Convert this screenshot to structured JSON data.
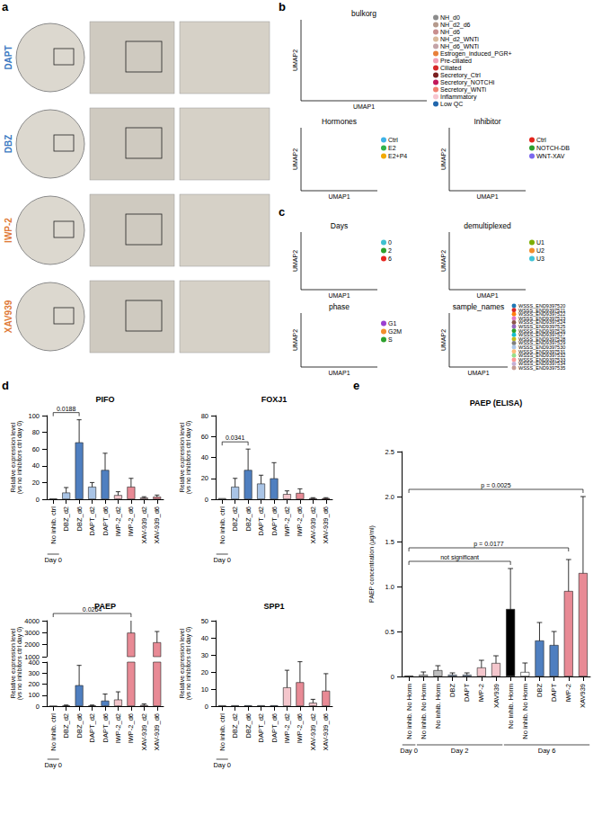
{
  "panel_labels": [
    "a",
    "b",
    "c",
    "d",
    "e"
  ],
  "panel_a": {
    "rows": [
      {
        "text": "DAPT",
        "color": "#3b78c2"
      },
      {
        "text": "DBZ",
        "color": "#3b78c2"
      },
      {
        "text": "IWP-2",
        "color": "#e07b39"
      },
      {
        "text": "XAV939",
        "color": "#e07b39"
      }
    ]
  },
  "panel_b": {
    "plots": [
      {
        "title": "bulkorg",
        "xlabel": "UMAP1",
        "ylabel": "UMAP2",
        "legend": [
          {
            "name": "NH_d0",
            "color": "#8c8c8c"
          },
          {
            "name": "NH_d2_d6",
            "color": "#b59a8c"
          },
          {
            "name": "NH_d6",
            "color": "#c98f8f"
          },
          {
            "name": "NH_d2_WNTi",
            "color": "#d9b99b"
          },
          {
            "name": "NH_d6_WNTi",
            "color": "#c4a4a8"
          },
          {
            "name": "Estrogen_induced_PGR+",
            "color": "#e8803a"
          },
          {
            "name": "Pre-ciliated",
            "color": "#f2a0b5"
          },
          {
            "name": "Ciliated",
            "color": "#d62728"
          },
          {
            "name": "Secretory_Ctrl",
            "color": "#7a1f1f"
          },
          {
            "name": "Secretory_NOTCHi",
            "color": "#c2185b"
          },
          {
            "name": "Secretory_WNTi",
            "color": "#f08070"
          },
          {
            "name": "Inflammatory",
            "color": "#f7c6d0"
          },
          {
            "name": "Low QC",
            "color": "#2166ac"
          }
        ]
      },
      {
        "title": "Hormones",
        "xlabel": "UMAP1",
        "ylabel": "UMAP2",
        "legend": [
          {
            "name": "Ctrl",
            "color": "#3fb2e6"
          },
          {
            "name": "E2",
            "color": "#2fb34a"
          },
          {
            "name": "E2+P4",
            "color": "#f2a900"
          }
        ]
      },
      {
        "title": "Inhibitor",
        "xlabel": "UMAP1",
        "ylabel": "UMAP2",
        "legend": [
          {
            "name": "Ctrl",
            "color": "#e3241b"
          },
          {
            "name": "NOTCH-DB",
            "color": "#2ca02c"
          },
          {
            "name": "WNT-XAV",
            "color": "#7b68ee"
          }
        ]
      }
    ]
  },
  "panel_c": {
    "plots": [
      {
        "title": "Days",
        "xlabel": "UMAP1",
        "ylabel": "UMAP2",
        "legend": [
          {
            "name": "0",
            "color": "#3fc1d0"
          },
          {
            "name": "2",
            "color": "#2ca02c"
          },
          {
            "name": "6",
            "color": "#e8251f"
          }
        ]
      },
      {
        "title": "demultiplexed",
        "xlabel": "UMAP1",
        "ylabel": "UMAP2",
        "legend": [
          {
            "name": "U1",
            "color": "#7cae00"
          },
          {
            "name": "U2",
            "color": "#f28e2b"
          },
          {
            "name": "U3",
            "color": "#40c4d8"
          }
        ]
      },
      {
        "title": "phase",
        "xlabel": "UMAP1",
        "ylabel": "UMAP2",
        "legend": [
          {
            "name": "G1",
            "color": "#9b3fd1"
          },
          {
            "name": "G2M",
            "color": "#f28e2b"
          },
          {
            "name": "S",
            "color": "#2ca02c"
          }
        ]
      },
      {
        "title": "sample_names",
        "xlabel": "UMAP1",
        "ylabel": "UMAP2",
        "legend": [
          {
            "name": "WSSS_END9397520",
            "color": "#1f77b4"
          },
          {
            "name": "WSSS_END9397521",
            "color": "#d62728"
          },
          {
            "name": "WSSS_END9397522",
            "color": "#ff7f0e"
          },
          {
            "name": "WSSS_END9397523",
            "color": "#e377c2"
          },
          {
            "name": "WSSS_END9397524",
            "color": "#8c564b"
          },
          {
            "name": "WSSS_END9397525",
            "color": "#9467bd"
          },
          {
            "name": "WSSS_END9397526",
            "color": "#2ca02c"
          },
          {
            "name": "WSSS_END9397527",
            "color": "#17becf"
          },
          {
            "name": "WSSS_END9397528",
            "color": "#bcbd22"
          },
          {
            "name": "WSSS_END9397529",
            "color": "#7f7f7f"
          },
          {
            "name": "WSSS_END9397530",
            "color": "#aec7e8"
          },
          {
            "name": "WSSS_END9397531",
            "color": "#ffbb78"
          },
          {
            "name": "WSSS_END9397532",
            "color": "#98df8a"
          },
          {
            "name": "WSSS_END9397533",
            "color": "#ff9896"
          },
          {
            "name": "WSSS_END9397534",
            "color": "#c5b0d5"
          },
          {
            "name": "WSSS_END9397535",
            "color": "#c49c94"
          }
        ]
      }
    ]
  },
  "chart_data": [
    {
      "type": "bar",
      "title": "PIFO",
      "ylabel": "Relative expression level\n(vs no inhibitors ctrl day 0)",
      "categories": [
        "No inhib. ctrl",
        "DBZ_d2",
        "DBZ_d6",
        "DAPT_d2",
        "DAPT_d6",
        "IWP-2_d2",
        "IWP-2_d6",
        "XAV-939_d2",
        "XAV-939_d6"
      ],
      "values": [
        1,
        8,
        68,
        15,
        35,
        5,
        15,
        2,
        3
      ],
      "errors": [
        0,
        6,
        27,
        5,
        20,
        4,
        10,
        1,
        2
      ],
      "colors": [
        "#ffffff",
        "#a9c4e6",
        "#4f7fc0",
        "#a9c4e6",
        "#4f7fc0",
        "#f4c6cc",
        "#e88a95",
        "#f4c6cc",
        "#e88a95"
      ],
      "ylim": [
        0,
        100
      ],
      "yticks": [
        0,
        20,
        40,
        60,
        80,
        100
      ],
      "annotations": [
        {
          "text": "0.0188",
          "from": 0,
          "to": 2
        }
      ],
      "x_groups": [
        {
          "text": "Day 0",
          "from": 0,
          "to": 0
        }
      ]
    },
    {
      "type": "bar",
      "title": "FOXJ1",
      "ylabel": "Relative expression level\n(vs no inhibitors ctrl day 0)",
      "categories": [
        "No inhib. ctrl",
        "DBZ_d2",
        "DBZ_d6",
        "DAPT_d2",
        "DAPT_d6",
        "IWP-2_d2",
        "IWP-2_d6",
        "XAV-939_d2",
        "XAV-939_d6"
      ],
      "values": [
        1,
        12,
        28,
        15,
        20,
        5,
        6,
        1,
        1
      ],
      "errors": [
        0,
        8,
        20,
        8,
        15,
        3,
        4,
        0.5,
        0.5
      ],
      "colors": [
        "#ffffff",
        "#a9c4e6",
        "#4f7fc0",
        "#a9c4e6",
        "#4f7fc0",
        "#f4c6cc",
        "#e88a95",
        "#f4c6cc",
        "#e88a95"
      ],
      "ylim": [
        0,
        80
      ],
      "yticks": [
        0,
        20,
        40,
        60,
        80
      ],
      "annotations": [
        {
          "text": "0.0341",
          "from": 0,
          "to": 2
        }
      ],
      "x_groups": [
        {
          "text": "Day 0",
          "from": 0,
          "to": 0
        }
      ]
    },
    {
      "type": "bar",
      "title": "PAEP",
      "ylabel": "Relative expression level\n(vs no inhibitors ctrl day 0)",
      "categories": [
        "No inhib. ctrl",
        "DBZ_d2",
        "DBZ_d6",
        "DAPT_d2",
        "DAPT_d6",
        "IWP-2_d2",
        "IWP-2_d6",
        "XAV-939_d2",
        "XAV-939_d6"
      ],
      "values": [
        1,
        5,
        190,
        5,
        50,
        60,
        3000,
        10,
        2200
      ],
      "errors": [
        0,
        5,
        180,
        5,
        60,
        70,
        1200,
        10,
        900
      ],
      "colors": [
        "#ffffff",
        "#a9c4e6",
        "#4f7fc0",
        "#a9c4e6",
        "#4f7fc0",
        "#f4c6cc",
        "#e88a95",
        "#f4c6cc",
        "#e88a95"
      ],
      "ylim": [
        0,
        4000
      ],
      "y_break": [
        400,
        1000
      ],
      "yticks": [
        0,
        100,
        200,
        300,
        400,
        1000,
        2000,
        3000,
        4000
      ],
      "annotations": [
        {
          "text": "0.0264",
          "from": 0,
          "to": 6
        }
      ],
      "x_groups": [
        {
          "text": "Day 0",
          "from": 0,
          "to": 0
        }
      ]
    },
    {
      "type": "bar",
      "title": "SPP1",
      "ylabel": "Relative expression level\n(vs no inhibitors ctrl day 0)",
      "categories": [
        "No inhib. ctrl",
        "DBZ_d2",
        "DBZ_d6",
        "DAPT_d2",
        "DAPT_d6",
        "IWP-2_d2",
        "IWP-2_d6",
        "XAV-939_d2",
        "XAV-939_d6"
      ],
      "values": [
        0.5,
        0.5,
        0.5,
        0.5,
        0.5,
        11,
        14,
        2,
        9
      ],
      "errors": [
        0,
        0,
        0,
        0,
        0,
        10,
        12,
        2,
        10
      ],
      "colors": [
        "#ffffff",
        "#a9c4e6",
        "#4f7fc0",
        "#a9c4e6",
        "#4f7fc0",
        "#f4c6cc",
        "#e88a95",
        "#f4c6cc",
        "#e88a95"
      ],
      "ylim": [
        0,
        50
      ],
      "yticks": [
        0,
        10,
        20,
        30,
        40,
        50
      ],
      "annotations": [],
      "x_groups": [
        {
          "text": "Day 0",
          "from": 0,
          "to": 0
        }
      ]
    },
    {
      "type": "bar",
      "title": "PAEP (ELISA)",
      "ylabel": "PAEP concentration (µg/ml)",
      "categories": [
        "No inhib. No Horm",
        "No inhib. No Horm",
        "No inhib. Horm",
        "DBZ",
        "DAPT",
        "IWP-2",
        "XAV939",
        "No inhib. Horm",
        "No inhib. No Horm",
        "DBZ",
        "DAPT",
        "IWP-2",
        "XAV939"
      ],
      "values": [
        0.01,
        0.02,
        0.07,
        0.02,
        0.02,
        0.1,
        0.15,
        0.75,
        0.05,
        0.4,
        0.35,
        0.95,
        1.15
      ],
      "errors": [
        0,
        0.03,
        0.05,
        0.02,
        0.02,
        0.08,
        0.08,
        0.45,
        0.1,
        0.2,
        0.15,
        0.35,
        0.85
      ],
      "colors": [
        "#ffffff",
        "#ffffff",
        "#bfbfbf",
        "#a9c4e6",
        "#a9c4e6",
        "#f4c6cc",
        "#f4c6cc",
        "#000000",
        "#ffffff",
        "#4f7fc0",
        "#4f7fc0",
        "#e88a95",
        "#e88a95"
      ],
      "ylim": [
        0,
        2.5
      ],
      "yticks": [
        0,
        0.5,
        {
          "value": 1,
          "label": "1.0"
        },
        1.5,
        {
          "value": 2,
          "label": "2.0"
        },
        2.5
      ],
      "annotations": [
        {
          "text": "not significant",
          "from": 0,
          "to": 7
        },
        {
          "text": "p = 0.0177",
          "from": 0,
          "to": 11
        },
        {
          "text": "p = 0.0025",
          "from": 0,
          "to": 12
        }
      ],
      "x_groups": [
        {
          "text": "Day 0",
          "from": 0,
          "to": 0
        },
        {
          "text": "Day 2",
          "from": 1,
          "to": 6
        },
        {
          "text": "Day 6",
          "from": 7,
          "to": 12
        }
      ]
    }
  ]
}
